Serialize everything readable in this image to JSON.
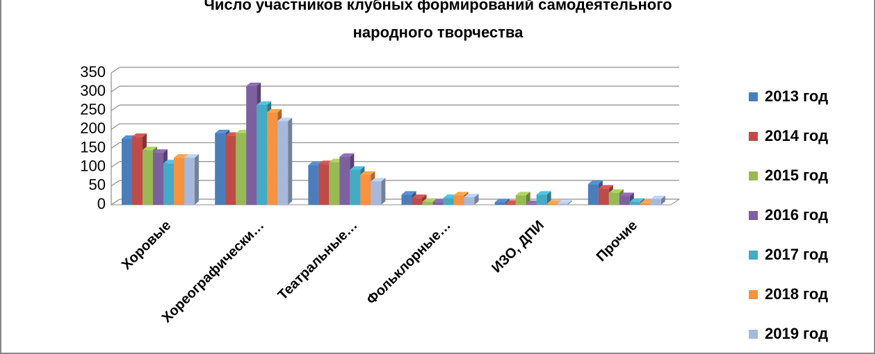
{
  "chart_data": {
    "type": "bar3d",
    "title": [
      "Число участников клубных формирований самодеятельного",
      "народного творчества"
    ],
    "categories": [
      "Хоровые",
      "Хореографически…",
      "Театральные…",
      "Фольклорные…",
      "ИЗО, ДПИ",
      "Прочие"
    ],
    "series": [
      {
        "name": "2013 год",
        "color": "#4a7ebb",
        "values": [
          175,
          190,
          105,
          27,
          7,
          55
        ]
      },
      {
        "name": "2014 год",
        "color": "#be4b48",
        "values": [
          180,
          183,
          108,
          18,
          3,
          43
        ]
      },
      {
        "name": "2015 год",
        "color": "#98b954",
        "values": [
          145,
          190,
          113,
          8,
          25,
          32
        ]
      },
      {
        "name": "2016 год",
        "color": "#7d60a0",
        "values": [
          138,
          315,
          127,
          7,
          2,
          23
        ]
      },
      {
        "name": "2017 год",
        "color": "#46aac5",
        "values": [
          110,
          265,
          93,
          18,
          27,
          8
        ]
      },
      {
        "name": "2018 год",
        "color": "#f69240",
        "values": [
          125,
          245,
          80,
          25,
          3,
          4
        ]
      },
      {
        "name": "2019 год",
        "color": "#a6b9db",
        "values": [
          125,
          222,
          62,
          20,
          3,
          15
        ]
      }
    ],
    "ylim": [
      0,
      350
    ],
    "yticks": [
      0,
      50,
      100,
      150,
      200,
      250,
      300,
      350
    ],
    "grid": true,
    "legend": "right"
  }
}
